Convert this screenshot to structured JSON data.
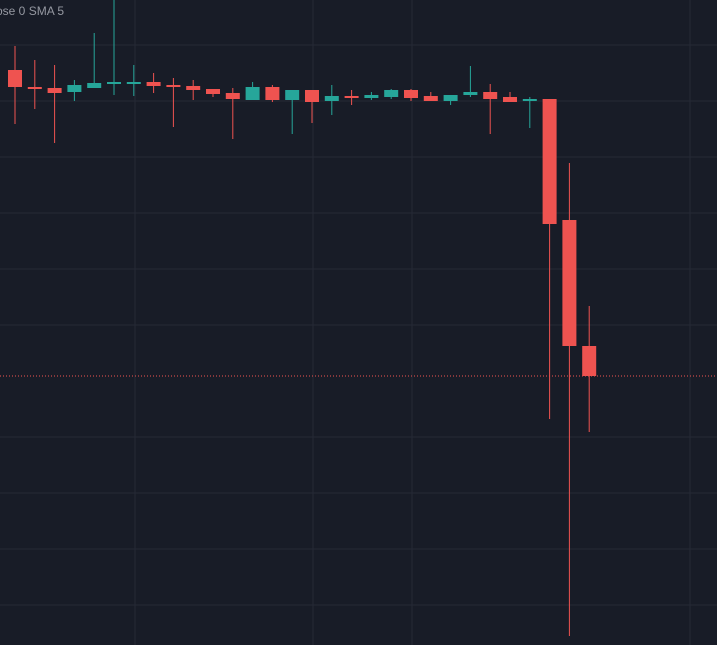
{
  "chart_data": {
    "type": "candlestick",
    "legend_text": "ose 0 SMA 5",
    "up_color": "#26a69a",
    "down_color": "#ef5350",
    "ylim": [
      0,
      645
    ],
    "open": [
      575,
      558,
      557,
      553,
      557,
      561,
      561,
      563,
      560,
      559,
      556,
      552,
      545,
      558,
      545,
      555,
      544,
      549,
      547,
      548,
      555,
      549,
      544,
      550,
      553,
      548,
      544,
      546,
      425,
      299
    ],
    "high": [
      599,
      585,
      580,
      565,
      612,
      645,
      580,
      572,
      567,
      565,
      556,
      557,
      563,
      560,
      555,
      555,
      560,
      555,
      553,
      556,
      556,
      553,
      550,
      579,
      561,
      553,
      548,
      546,
      482,
      339
    ],
    "low": [
      521,
      536,
      502,
      544,
      557,
      550,
      549,
      552,
      518,
      545,
      548,
      506,
      545,
      543,
      511,
      522,
      530,
      540,
      545,
      546,
      544,
      544,
      540,
      548,
      511,
      543,
      517,
      226,
      9,
      213
    ],
    "close": [
      558,
      556,
      552,
      560,
      562,
      563,
      563,
      559,
      558,
      555,
      551,
      546,
      558,
      545,
      555,
      543,
      549,
      547,
      550,
      555,
      547,
      544,
      550,
      553,
      546,
      543,
      546,
      421,
      299,
      269
    ]
  }
}
